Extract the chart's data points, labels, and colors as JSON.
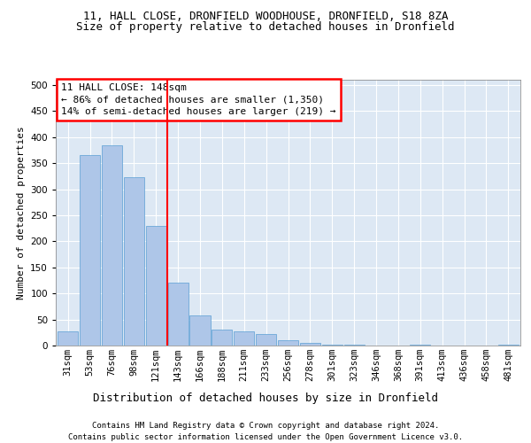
{
  "title_line1": "11, HALL CLOSE, DRONFIELD WOODHOUSE, DRONFIELD, S18 8ZA",
  "title_line2": "Size of property relative to detached houses in Dronfield",
  "xlabel": "Distribution of detached houses by size in Dronfield",
  "ylabel": "Number of detached properties",
  "footer_line1": "Contains HM Land Registry data © Crown copyright and database right 2024.",
  "footer_line2": "Contains public sector information licensed under the Open Government Licence v3.0.",
  "categories": [
    "31sqm",
    "53sqm",
    "76sqm",
    "98sqm",
    "121sqm",
    "143sqm",
    "166sqm",
    "188sqm",
    "211sqm",
    "233sqm",
    "256sqm",
    "278sqm",
    "301sqm",
    "323sqm",
    "346sqm",
    "368sqm",
    "391sqm",
    "413sqm",
    "436sqm",
    "458sqm",
    "481sqm"
  ],
  "bar_values": [
    28,
    365,
    385,
    323,
    230,
    120,
    57,
    30,
    28,
    22,
    10,
    5,
    2,
    1,
    0,
    0,
    1,
    0,
    0,
    0,
    1
  ],
  "bar_color": "#aec6e8",
  "bar_edge_color": "#5a9fd4",
  "vline_x": 4.5,
  "vline_color": "red",
  "annotation_text": "11 HALL CLOSE: 148sqm\n← 86% of detached houses are smaller (1,350)\n14% of semi-detached houses are larger (219) →",
  "ylim": [
    0,
    510
  ],
  "yticks": [
    0,
    50,
    100,
    150,
    200,
    250,
    300,
    350,
    400,
    450,
    500
  ],
  "plot_bg_color": "#dde8f4",
  "grid_color": "white",
  "title_fontsize": 9,
  "subtitle_fontsize": 9,
  "ylabel_fontsize": 8,
  "xlabel_fontsize": 9,
  "tick_fontsize": 7.5,
  "annotation_fontsize": 8,
  "footer_fontsize": 6.5
}
